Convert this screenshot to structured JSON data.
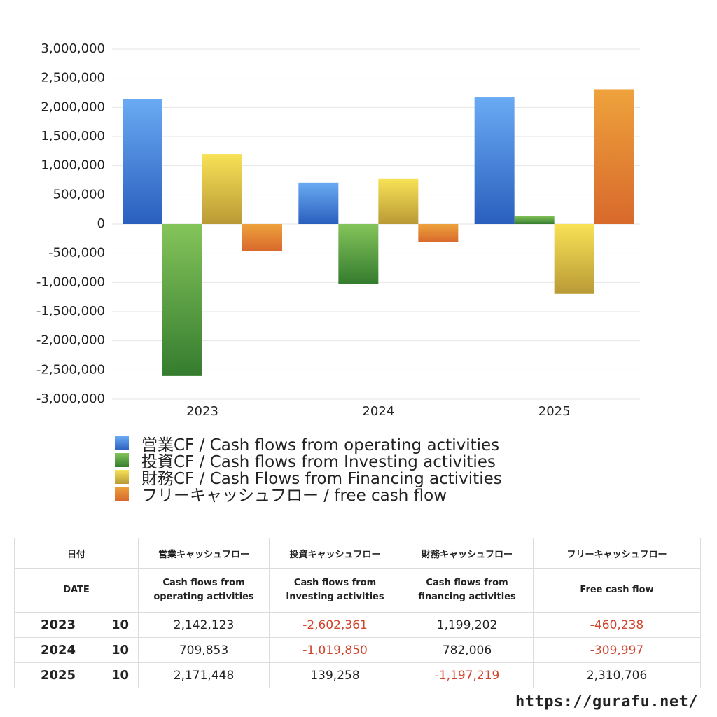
{
  "chart_data": {
    "type": "bar",
    "categories": [
      "2023",
      "2024",
      "2025"
    ],
    "series": [
      {
        "name": "営業CF / Cash flows from operating activities",
        "values": [
          2142123,
          709853,
          2171448
        ],
        "color": "#3d7fd8"
      },
      {
        "name": "投資CF / Cash flows from Investing activities",
        "values": [
          -2602361,
          -1019850,
          139258
        ],
        "color": "#4e9e3c"
      },
      {
        "name": "財務CF / Cash Flows from Financing activities",
        "values": [
          1199202,
          782006,
          -1197219
        ],
        "color": "#e0c844"
      },
      {
        "name": "フリーキャッシュフロー / free cash flow",
        "values": [
          -460238,
          -309997,
          2310706
        ],
        "color": "#e0873a"
      }
    ],
    "ylim": [
      -3000000,
      3000000
    ],
    "yticks": [
      "3,000,000",
      "2,500,000",
      "2,000,000",
      "1,500,000",
      "1,000,000",
      "500,000",
      "0",
      "-500,000",
      "-1,000,000",
      "-1,500,000",
      "-2,000,000",
      "-2,500,000",
      "-3,000,000"
    ],
    "grid": true,
    "legend_position": "bottom-left"
  },
  "table": {
    "header": [
      "日付",
      "営業キャッシュフロー",
      "投資キャッシュフロー",
      "財務キャッシュフロー",
      "フリーキャッシュフロー"
    ],
    "subheader": {
      "date": "DATE",
      "operating": [
        "Cash flows from",
        "operating activities"
      ],
      "investing": [
        "Cash flows from",
        "Investing activities"
      ],
      "financing": [
        "Cash flows from",
        "financing activities"
      ],
      "free": "Free cash flow"
    },
    "rows": [
      {
        "year": "2023",
        "month": "10",
        "operating": "2,142,123",
        "investing": "-2,602,361",
        "financing": "1,199,202",
        "free": "-460,238"
      },
      {
        "year": "2024",
        "month": "10",
        "operating": "709,853",
        "investing": "-1,019,850",
        "financing": "782,006",
        "free": "-309,997"
      },
      {
        "year": "2025",
        "month": "10",
        "operating": "2,171,448",
        "investing": "139,258",
        "financing": "-1,197,219",
        "free": "2,310,706"
      }
    ]
  },
  "site_url": "https://gurafu.net/"
}
